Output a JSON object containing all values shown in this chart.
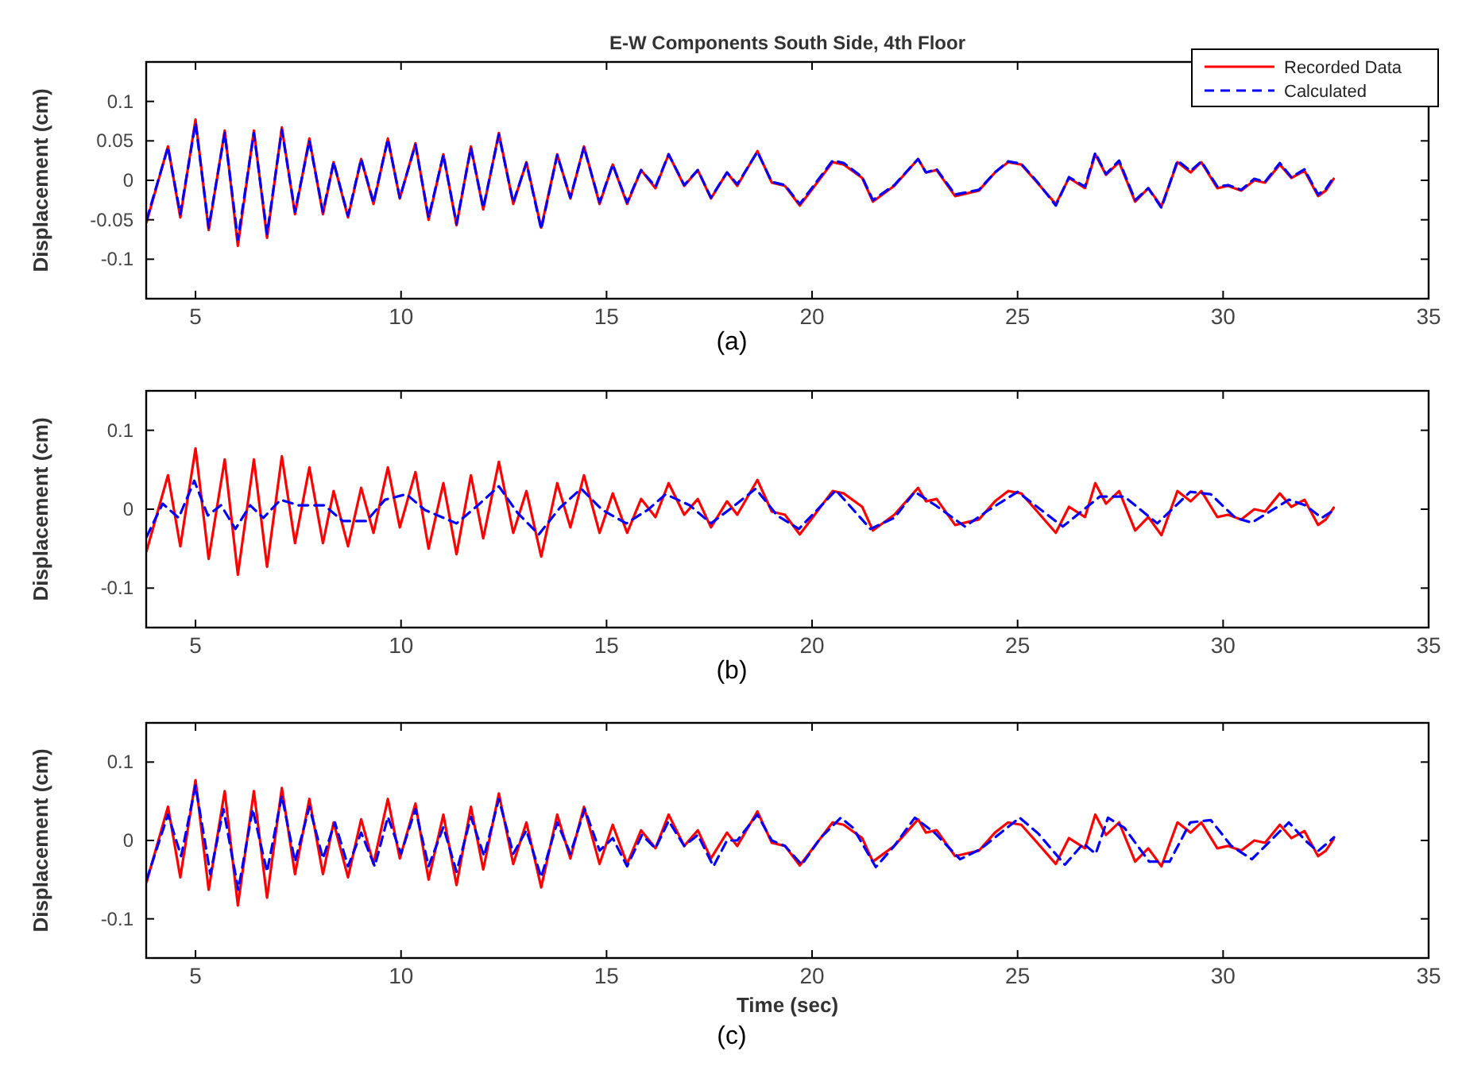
{
  "chart_data": [
    {
      "type": "line",
      "title": "E-W Components South Side, 4th Floor",
      "ylabel": "Displacement (cm)",
      "annotations": [
        "(a)"
      ],
      "xlim": [
        3.8,
        35
      ],
      "xticks": [
        5,
        10,
        15,
        20,
        25,
        30,
        35
      ],
      "ylim": [
        -0.15,
        0.15
      ],
      "yticks": [
        -0.1,
        -0.05,
        0,
        0.05,
        0.1
      ],
      "grid": false,
      "legend": "top right",
      "marker": "none",
      "series": [
        {
          "name": "Recorded Data",
          "color": "#ff0000",
          "line_style": "solid",
          "x": [
            3.81,
            4.33,
            4.63,
            5.0,
            5.32,
            5.71,
            6.03,
            6.42,
            6.74,
            7.1,
            7.42,
            7.77,
            8.1,
            8.36,
            8.71,
            9.03,
            9.33,
            9.68,
            9.97,
            10.35,
            10.67,
            11.03,
            11.35,
            11.7,
            12.0,
            12.38,
            12.73,
            13.05,
            13.41,
            13.8,
            14.12,
            14.45,
            14.83,
            15.15,
            15.5,
            15.84,
            16.19,
            16.51,
            16.89,
            17.22,
            17.54,
            17.93,
            18.18,
            18.67,
            19.02,
            19.34,
            19.7,
            20.5,
            20.77,
            21.22,
            21.48,
            22.0,
            22.58,
            22.77,
            23.03,
            23.48,
            24.06,
            24.45,
            24.77,
            25.09,
            25.48,
            25.93,
            26.25,
            26.64,
            26.89,
            27.15,
            27.47,
            27.86,
            28.18,
            28.5,
            28.89,
            29.21,
            29.47,
            29.86,
            30.12,
            30.44,
            30.76,
            31.02,
            31.38,
            31.66,
            31.98,
            32.31,
            32.5,
            32.69
          ],
          "values": [
            -0.053,
            0.043,
            -0.047,
            0.077,
            -0.063,
            0.063,
            -0.083,
            0.063,
            -0.073,
            0.067,
            -0.043,
            0.053,
            -0.043,
            0.023,
            -0.047,
            0.027,
            -0.03,
            0.053,
            -0.023,
            0.047,
            -0.05,
            0.033,
            -0.057,
            0.043,
            -0.037,
            0.06,
            -0.03,
            0.023,
            -0.06,
            0.033,
            -0.023,
            0.043,
            -0.03,
            0.02,
            -0.03,
            0.013,
            -0.01,
            0.033,
            -0.007,
            0.013,
            -0.023,
            0.01,
            -0.007,
            0.037,
            -0.003,
            -0.007,
            -0.032,
            0.023,
            0.02,
            0.003,
            -0.027,
            -0.007,
            0.027,
            0.01,
            0.013,
            -0.02,
            -0.013,
            0.01,
            0.023,
            0.02,
            -0.003,
            -0.03,
            0.003,
            -0.01,
            0.033,
            0.007,
            0.023,
            -0.027,
            -0.01,
            -0.033,
            0.023,
            0.01,
            0.023,
            -0.01,
            -0.007,
            -0.013,
            0,
            -0.003,
            0.02,
            0.003,
            0.012,
            -0.02,
            -0.013,
            0.002
          ]
        },
        {
          "name": "Calculated",
          "color": "#0000ff",
          "line_style": "dashed",
          "x": [
            3.81,
            4.33,
            4.63,
            5.0,
            5.32,
            5.71,
            6.03,
            6.42,
            6.74,
            7.1,
            7.42,
            7.77,
            8.1,
            8.36,
            8.71,
            9.03,
            9.33,
            9.68,
            9.97,
            10.35,
            10.67,
            11.03,
            11.35,
            11.7,
            12.0,
            12.38,
            12.73,
            13.05,
            13.41,
            13.8,
            14.12,
            14.45,
            14.83,
            15.15,
            15.5,
            15.84,
            16.19,
            16.51,
            16.89,
            17.22,
            17.54,
            17.93,
            18.18,
            18.67,
            19.02,
            19.34,
            19.7,
            20.5,
            20.77,
            21.22,
            21.48,
            22.0,
            22.58,
            22.77,
            23.03,
            23.48,
            24.06,
            24.45,
            24.77,
            25.09,
            25.48,
            25.93,
            26.25,
            26.64,
            26.89,
            27.15,
            27.47,
            27.86,
            28.18,
            28.5,
            28.89,
            29.21,
            29.47,
            29.86,
            30.12,
            30.44,
            30.76,
            31.02,
            31.38,
            31.66,
            31.98,
            32.31,
            32.5,
            32.69
          ],
          "values": [
            -0.05,
            0.042,
            -0.043,
            0.073,
            -0.06,
            0.06,
            -0.075,
            0.06,
            -0.068,
            0.064,
            -0.04,
            0.05,
            -0.04,
            0.023,
            -0.045,
            0.027,
            -0.028,
            0.052,
            -0.022,
            0.045,
            -0.047,
            0.032,
            -0.055,
            0.041,
            -0.035,
            0.058,
            -0.028,
            0.022,
            -0.062,
            0.032,
            -0.022,
            0.042,
            -0.028,
            0.02,
            -0.028,
            0.013,
            -0.008,
            0.033,
            -0.006,
            0.013,
            -0.022,
            0.01,
            -0.005,
            0.036,
            -0.002,
            -0.006,
            -0.03,
            0.025,
            0.022,
            0.004,
            -0.025,
            -0.006,
            0.027,
            0.01,
            0.014,
            -0.018,
            -0.012,
            0.01,
            0.024,
            0.021,
            -0.002,
            -0.032,
            0.004,
            -0.008,
            0.035,
            0.008,
            0.025,
            -0.025,
            -0.01,
            -0.035,
            0.025,
            0.012,
            0.024,
            -0.008,
            -0.006,
            -0.012,
            0.002,
            -0.002,
            0.022,
            0.004,
            0.014,
            -0.018,
            -0.011,
            0.004
          ]
        }
      ]
    },
    {
      "type": "line",
      "ylabel": "Displacement (cm)",
      "annotations": [
        "(b)"
      ],
      "xlim": [
        3.8,
        35
      ],
      "xticks": [
        5,
        10,
        15,
        20,
        25,
        30,
        35
      ],
      "ylim": [
        -0.15,
        0.15
      ],
      "yticks": [
        -0.1,
        0,
        0.1
      ],
      "grid": false,
      "legend": false,
      "marker": "none",
      "series": [
        {
          "color": "#ff0000",
          "line_style": "solid",
          "x": [
            3.81,
            4.33,
            4.63,
            5.0,
            5.32,
            5.71,
            6.03,
            6.42,
            6.74,
            7.1,
            7.42,
            7.77,
            8.1,
            8.36,
            8.71,
            9.03,
            9.33,
            9.68,
            9.97,
            10.35,
            10.67,
            11.03,
            11.35,
            11.7,
            12.0,
            12.38,
            12.73,
            13.05,
            13.41,
            13.8,
            14.12,
            14.45,
            14.83,
            15.15,
            15.5,
            15.84,
            16.19,
            16.51,
            16.89,
            17.22,
            17.54,
            17.93,
            18.18,
            18.67,
            19.02,
            19.34,
            19.7,
            20.5,
            20.77,
            21.22,
            21.48,
            22.0,
            22.58,
            22.77,
            23.03,
            23.48,
            24.06,
            24.45,
            24.77,
            25.09,
            25.48,
            25.93,
            26.25,
            26.64,
            26.89,
            27.15,
            27.47,
            27.86,
            28.18,
            28.5,
            28.89,
            29.21,
            29.47,
            29.86,
            30.12,
            30.44,
            30.76,
            31.02,
            31.38,
            31.66,
            31.98,
            32.31,
            32.5,
            32.69
          ],
          "values": [
            -0.053,
            0.043,
            -0.047,
            0.077,
            -0.063,
            0.063,
            -0.083,
            0.063,
            -0.073,
            0.067,
            -0.043,
            0.053,
            -0.043,
            0.023,
            -0.047,
            0.027,
            -0.03,
            0.053,
            -0.023,
            0.047,
            -0.05,
            0.033,
            -0.057,
            0.043,
            -0.037,
            0.06,
            -0.03,
            0.023,
            -0.06,
            0.033,
            -0.023,
            0.043,
            -0.03,
            0.02,
            -0.03,
            0.013,
            -0.01,
            0.033,
            -0.007,
            0.013,
            -0.023,
            0.01,
            -0.007,
            0.037,
            -0.003,
            -0.007,
            -0.032,
            0.023,
            0.02,
            0.003,
            -0.027,
            -0.007,
            0.027,
            0.01,
            0.013,
            -0.02,
            -0.013,
            0.01,
            0.023,
            0.02,
            -0.003,
            -0.03,
            0.003,
            -0.01,
            0.033,
            0.007,
            0.023,
            -0.027,
            -0.01,
            -0.033,
            0.023,
            0.01,
            0.023,
            -0.01,
            -0.007,
            -0.013,
            0,
            -0.003,
            0.02,
            0.003,
            0.012,
            -0.02,
            -0.013,
            0.002
          ]
        },
        {
          "color": "#0000ff",
          "line_style": "dashed",
          "x": [
            3.81,
            4.2,
            4.59,
            4.97,
            5.3,
            5.62,
            5.97,
            6.33,
            6.65,
            7.07,
            7.49,
            8.13,
            8.58,
            9.16,
            9.61,
            10.13,
            10.58,
            11.35,
            11.87,
            12.38,
            12.84,
            13.35,
            13.87,
            14.38,
            14.9,
            15.48,
            16.0,
            16.44,
            17.02,
            17.54,
            18.05,
            18.63,
            19.15,
            19.68,
            20.58,
            21.42,
            22.0,
            22.5,
            23.0,
            23.72,
            24.3,
            25.0,
            25.5,
            26.1,
            27.0,
            27.6,
            28.4,
            29.2,
            29.7,
            30.3,
            30.7,
            31.6,
            32.0,
            32.4,
            32.7
          ],
          "values": [
            -0.035,
            0.007,
            -0.011,
            0.036,
            -0.008,
            0.005,
            -0.025,
            0.005,
            -0.011,
            0.012,
            0.005,
            0.005,
            -0.015,
            -0.015,
            0.012,
            0.019,
            -0.001,
            -0.018,
            0.005,
            0.029,
            -0.005,
            -0.032,
            0.002,
            0.026,
            -0.001,
            -0.018,
            -0.001,
            0.019,
            0.005,
            -0.018,
            0.002,
            0.026,
            -0.008,
            -0.025,
            0.024,
            -0.025,
            -0.011,
            0.022,
            0.005,
            -0.022,
            -0.001,
            0.022,
            0.002,
            -0.022,
            0.016,
            0.016,
            -0.018,
            0.022,
            0.019,
            -0.011,
            -0.017,
            0.012,
            0.005,
            -0.011,
            -0.001
          ]
        }
      ]
    },
    {
      "type": "line",
      "ylabel": "Displacement (cm)",
      "xlabel": "Time (sec)",
      "annotations": [
        "(c)"
      ],
      "xlim": [
        3.8,
        35
      ],
      "xticks": [
        5,
        10,
        15,
        20,
        25,
        30,
        35
      ],
      "ylim": [
        -0.15,
        0.15
      ],
      "yticks": [
        -0.1,
        0,
        0.1
      ],
      "grid": false,
      "legend": false,
      "marker": "none",
      "series": [
        {
          "color": "#ff0000",
          "line_style": "solid",
          "x": [
            3.81,
            4.33,
            4.63,
            5.0,
            5.32,
            5.71,
            6.03,
            6.42,
            6.74,
            7.1,
            7.42,
            7.77,
            8.1,
            8.36,
            8.71,
            9.03,
            9.33,
            9.68,
            9.97,
            10.35,
            10.67,
            11.03,
            11.35,
            11.7,
            12.0,
            12.38,
            12.73,
            13.05,
            13.41,
            13.8,
            14.12,
            14.45,
            14.83,
            15.15,
            15.5,
            15.84,
            16.19,
            16.51,
            16.89,
            17.22,
            17.54,
            17.93,
            18.18,
            18.67,
            19.02,
            19.34,
            19.7,
            20.5,
            20.77,
            21.22,
            21.48,
            22.0,
            22.58,
            22.77,
            23.03,
            23.48,
            24.06,
            24.45,
            24.77,
            25.09,
            25.48,
            25.93,
            26.25,
            26.64,
            26.89,
            27.15,
            27.47,
            27.86,
            28.18,
            28.5,
            28.89,
            29.21,
            29.47,
            29.86,
            30.12,
            30.44,
            30.76,
            31.02,
            31.38,
            31.66,
            31.98,
            32.31,
            32.5,
            32.69
          ],
          "values": [
            -0.053,
            0.043,
            -0.047,
            0.077,
            -0.063,
            0.063,
            -0.083,
            0.063,
            -0.073,
            0.067,
            -0.043,
            0.053,
            -0.043,
            0.023,
            -0.047,
            0.027,
            -0.03,
            0.053,
            -0.023,
            0.047,
            -0.05,
            0.033,
            -0.057,
            0.043,
            -0.037,
            0.06,
            -0.03,
            0.023,
            -0.06,
            0.033,
            -0.023,
            0.043,
            -0.03,
            0.02,
            -0.03,
            0.013,
            -0.01,
            0.033,
            -0.007,
            0.013,
            -0.023,
            0.01,
            -0.007,
            0.037,
            -0.003,
            -0.007,
            -0.032,
            0.023,
            0.02,
            0.003,
            -0.027,
            -0.007,
            0.027,
            0.01,
            0.013,
            -0.02,
            -0.013,
            0.01,
            0.023,
            0.02,
            -0.003,
            -0.03,
            0.003,
            -0.01,
            0.033,
            0.007,
            0.023,
            -0.027,
            -0.01,
            -0.033,
            0.023,
            0.01,
            0.023,
            -0.01,
            -0.007,
            -0.013,
            0,
            -0.003,
            0.02,
            0.003,
            0.012,
            -0.02,
            -0.013,
            0.002
          ]
        },
        {
          "color": "#0000ff",
          "line_style": "dashed",
          "x": [
            3.81,
            4.33,
            4.65,
            5.0,
            5.36,
            5.68,
            6.04,
            6.39,
            6.74,
            7.1,
            7.42,
            7.77,
            8.1,
            8.39,
            8.71,
            9.03,
            9.36,
            9.68,
            10.0,
            10.35,
            10.67,
            11.03,
            11.35,
            11.7,
            12.02,
            12.38,
            12.73,
            13.05,
            13.41,
            13.8,
            14.12,
            14.47,
            14.83,
            15.15,
            15.5,
            15.86,
            16.19,
            16.51,
            16.89,
            17.22,
            17.6,
            17.93,
            18.18,
            18.67,
            19.02,
            19.34,
            19.75,
            20.2,
            20.7,
            21.0,
            21.55,
            22.0,
            22.5,
            23.0,
            23.6,
            24.1,
            25.05,
            25.5,
            26.15,
            26.6,
            26.9,
            27.2,
            27.6,
            28.2,
            28.7,
            29.2,
            29.7,
            30.2,
            30.7,
            31.6,
            32.0,
            32.3,
            32.7
          ],
          "values": [
            -0.05,
            0.033,
            -0.02,
            0.07,
            -0.043,
            0.04,
            -0.063,
            0.04,
            -0.04,
            0.057,
            -0.027,
            0.043,
            -0.023,
            0.023,
            -0.033,
            0.01,
            -0.033,
            0.03,
            -0.017,
            0.04,
            -0.033,
            0.017,
            -0.04,
            0.03,
            -0.02,
            0.053,
            -0.017,
            0.013,
            -0.047,
            0.023,
            -0.017,
            0.04,
            -0.013,
            0.003,
            -0.033,
            0.007,
            -0.01,
            0.025,
            -0.007,
            0.007,
            -0.033,
            0,
            0,
            0.033,
            0,
            -0.007,
            -0.031,
            0.003,
            0.029,
            0.016,
            -0.034,
            -0.007,
            0.029,
            0.009,
            -0.024,
            -0.011,
            0.029,
            0.009,
            -0.031,
            -0.004,
            -0.017,
            0.029,
            0.016,
            -0.027,
            -0.027,
            0.023,
            0.026,
            -0.007,
            -0.024,
            0.023,
            0,
            -0.014,
            0.004
          ]
        }
      ]
    }
  ]
}
